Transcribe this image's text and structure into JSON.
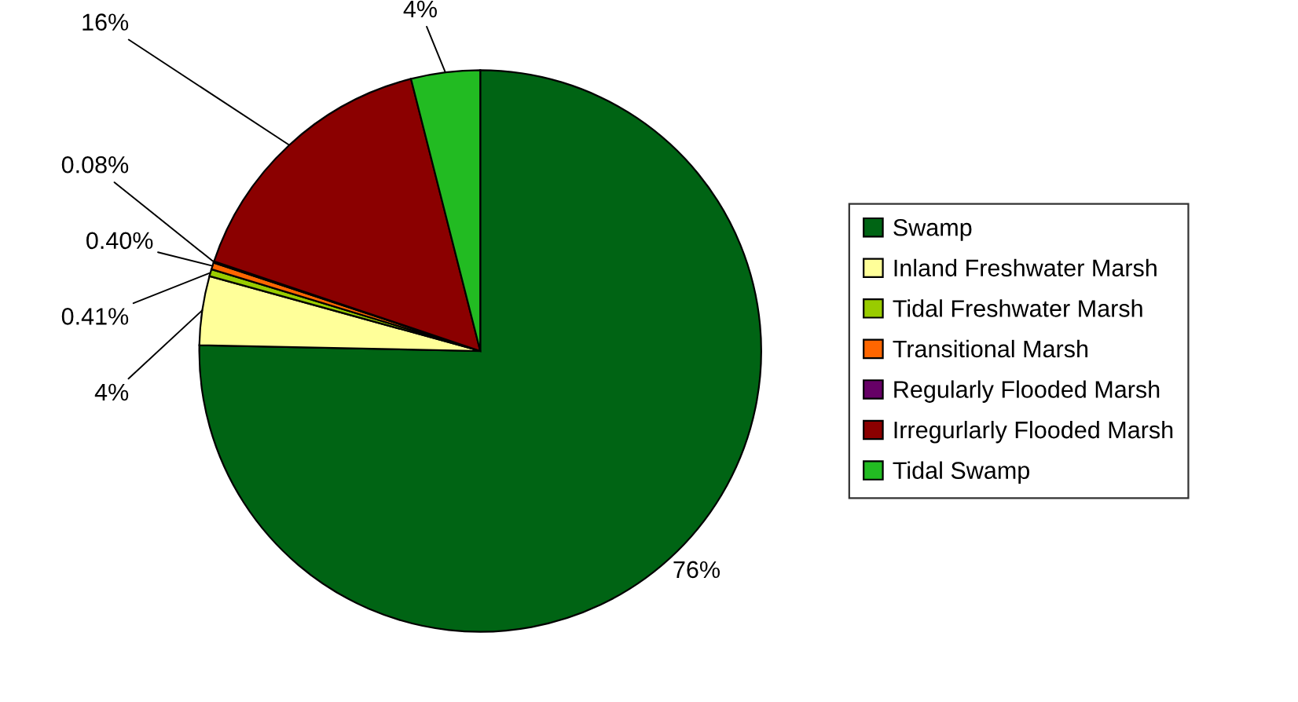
{
  "chart_data": {
    "type": "pie",
    "categories": [
      "Swamp",
      "Inland Freshwater Marsh",
      "Tidal Freshwater Marsh",
      "Transitional Marsh",
      "Regularly Flooded Marsh",
      "Irregurlarly Flooded Marsh",
      "Tidal Swamp"
    ],
    "values": [
      76,
      4,
      0.41,
      0.4,
      0.08,
      16,
      4
    ],
    "value_labels": [
      "76%",
      "4%",
      "0.41%",
      "0.40%",
      "0.08%",
      "16%",
      "4%"
    ],
    "colors": [
      "#006414",
      "#ffff99",
      "#99cc00",
      "#ff6600",
      "#660066",
      "#8b0000",
      "#22bb22"
    ],
    "legend": "right"
  }
}
